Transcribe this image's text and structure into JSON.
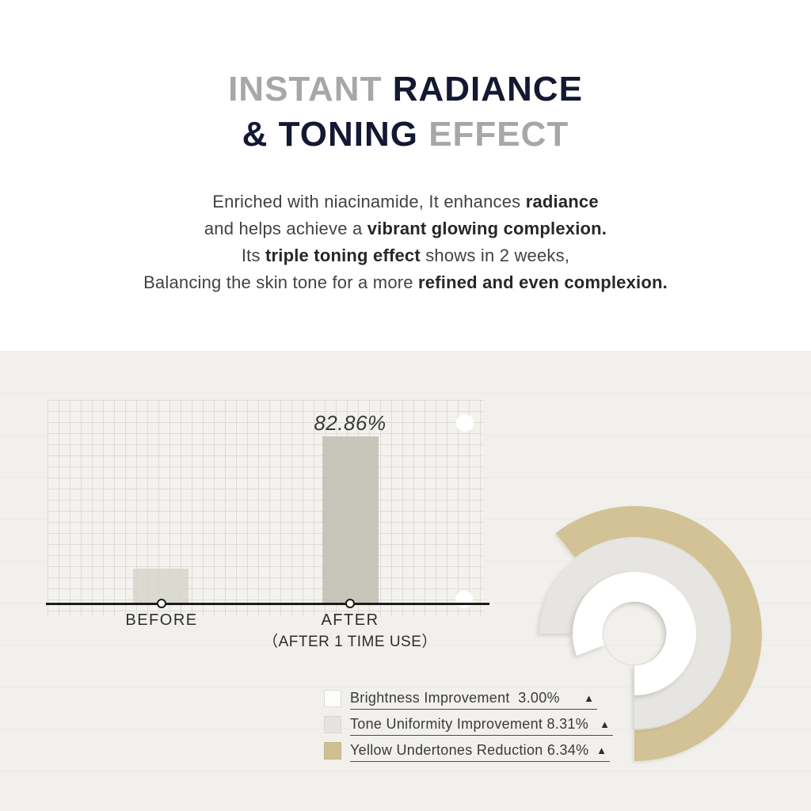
{
  "colors": {
    "navy": "#141832",
    "title_gray": "#a7a7a7",
    "body_text": "#424242",
    "paper": "#f1f0ec",
    "grid_line": "#dedcd7",
    "axis": "#1c1c1c",
    "bar_before": "#d5d4ca",
    "bar_after": "#bfbeb0",
    "beige": "#d2c295",
    "arc_gray": "#e6e5e2",
    "arc_white": "#ffffff"
  },
  "header": {
    "line1": [
      {
        "text": "INSTANT ",
        "tone": "gray"
      },
      {
        "text": "RADIANCE",
        "tone": "navy"
      }
    ],
    "line2": [
      {
        "text": "& TONING ",
        "tone": "navy"
      },
      {
        "text": "EFFECT",
        "tone": "gray"
      }
    ]
  },
  "intro": {
    "lines": [
      [
        {
          "t": "Enriched with niacinamide, It enhances ",
          "b": false
        },
        {
          "t": "radiance",
          "b": true
        }
      ],
      [
        {
          "t": "and helps achieve a ",
          "b": false
        },
        {
          "t": "vibrant glowing complexion.",
          "b": true
        }
      ],
      [
        {
          "t": "Its ",
          "b": false
        },
        {
          "t": "triple toning effect",
          "b": true
        },
        {
          "t": " shows in 2 weeks,",
          "b": false
        }
      ],
      [
        {
          "t": "Balancing the skin tone for a more ",
          "b": false
        },
        {
          "t": "refined and even complexion.",
          "b": true
        }
      ]
    ]
  },
  "chart_data": [
    {
      "type": "bar",
      "title": "",
      "categories": [
        "BEFORE",
        "AFTER"
      ],
      "category_sublabels": [
        "",
        "（AFTER 1 TIME USE）"
      ],
      "values": [
        17.6,
        82.86
      ],
      "value_labels": [
        "",
        "82.86%"
      ],
      "ylim": [
        0,
        100
      ],
      "grid": true,
      "grid_style": "graph-paper",
      "bar_colors": [
        "#d5d4ca",
        "#bfbeb0"
      ],
      "axis_markers": "circle-on-baseline"
    },
    {
      "type": "donut",
      "style": "decorative concentric open arcs",
      "series": [
        {
          "name": "Brightness Improvement",
          "value": 3.0,
          "color": "#ffffff"
        },
        {
          "name": "Tone Uniformity Improvement",
          "value": 8.31,
          "color": "#e6e5e2"
        },
        {
          "name": "Yellow Undertones Reduction",
          "value": 6.34,
          "color": "#d2c295"
        }
      ],
      "legend_position": "bottom-left"
    }
  ],
  "legend": {
    "marker": "▲",
    "items": [
      {
        "label": "Brightness Improvement  3.00%",
        "swatch": "#fcfcfb",
        "swatch_border": "#dddcd7"
      },
      {
        "label": "Tone Uniformity Improvement 8.31%",
        "swatch": "#e4e3e0",
        "swatch_border": "#d8d7d3"
      },
      {
        "label": "Yellow Undertones Reduction 6.34%",
        "swatch": "#cfc094",
        "swatch_border": "#c4b589"
      }
    ]
  }
}
